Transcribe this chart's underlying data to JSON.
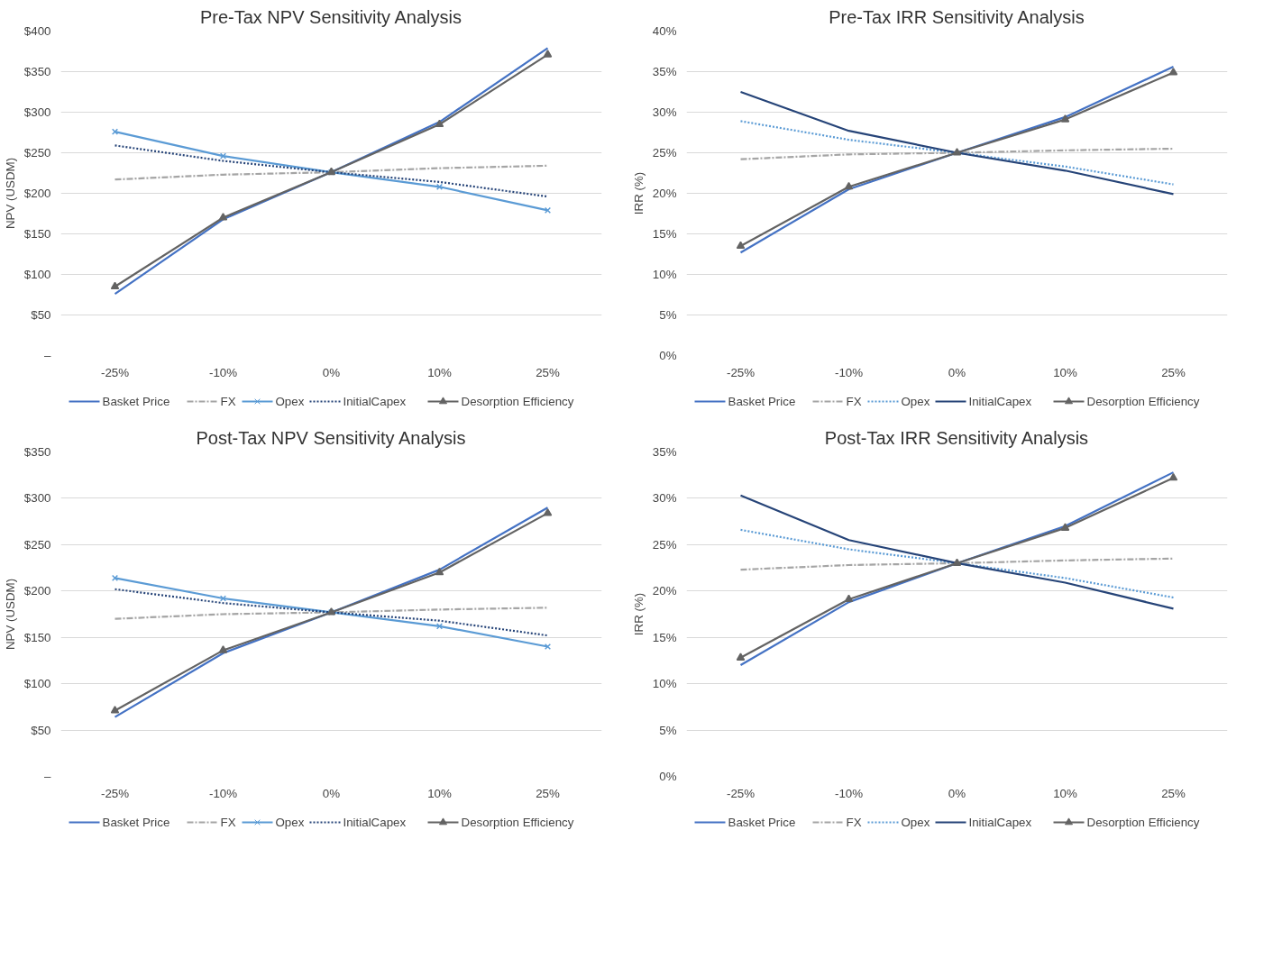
{
  "chart_data": [
    {
      "type": "line",
      "title": "Pre-Tax NPV Sensitivity Analysis",
      "ylabel": "NPV (USDM)",
      "categories": [
        "-25%",
        "-10%",
        "0%",
        "10%",
        "25%"
      ],
      "ylim": [
        0,
        400
      ],
      "yticks": [
        {
          "value": 0,
          "label": "–"
        },
        {
          "value": 50,
          "label": "$50"
        },
        {
          "value": 100,
          "label": "$100"
        },
        {
          "value": 150,
          "label": "$150"
        },
        {
          "value": 200,
          "label": "$200"
        },
        {
          "value": 250,
          "label": "$250"
        },
        {
          "value": 300,
          "label": "$300"
        },
        {
          "value": 350,
          "label": "$350"
        },
        {
          "value": 400,
          "label": "$400"
        }
      ],
      "grid": "y",
      "legend": "bottom",
      "series": [
        {
          "name": "Basket Price",
          "color": "#4472c4",
          "line_style": "solid",
          "marker": "none",
          "values": [
            76,
            168,
            226,
            288,
            379
          ]
        },
        {
          "name": "FX",
          "color": "#a5a5a5",
          "line_style": "dashdot",
          "marker": "none",
          "values": [
            217,
            223,
            226,
            231,
            234
          ]
        },
        {
          "name": "Opex",
          "color": "#5b9bd5",
          "line_style": "solid",
          "marker": "cross",
          "values": [
            276,
            246,
            226,
            208,
            179
          ]
        },
        {
          "name": "InitialCapex",
          "color": "#264478",
          "line_style": "dotted",
          "marker": "none",
          "values": [
            259,
            240,
            226,
            214,
            196
          ]
        },
        {
          "name": "Desorption Efficiency",
          "color": "#636363",
          "line_style": "solid",
          "marker": "triangle",
          "values": [
            85,
            170,
            226,
            285,
            371
          ]
        }
      ]
    },
    {
      "type": "line",
      "title": "Pre-Tax IRR Sensitivity Analysis",
      "ylabel": "IRR (%)",
      "categories": [
        "-25%",
        "-10%",
        "0%",
        "10%",
        "25%"
      ],
      "ylim": [
        0,
        40
      ],
      "yticks": [
        {
          "value": 0,
          "label": "0%"
        },
        {
          "value": 5,
          "label": "5%"
        },
        {
          "value": 10,
          "label": "10%"
        },
        {
          "value": 15,
          "label": "15%"
        },
        {
          "value": 20,
          "label": "20%"
        },
        {
          "value": 25,
          "label": "25%"
        },
        {
          "value": 30,
          "label": "30%"
        },
        {
          "value": 35,
          "label": "35%"
        },
        {
          "value": 40,
          "label": "40%"
        }
      ],
      "grid": "y",
      "legend": "bottom",
      "series": [
        {
          "name": "Basket Price",
          "color": "#4472c4",
          "line_style": "solid",
          "marker": "none",
          "values": [
            12.7,
            20.5,
            25.0,
            29.4,
            35.6
          ]
        },
        {
          "name": "FX",
          "color": "#a5a5a5",
          "line_style": "dashdot",
          "marker": "none",
          "values": [
            24.2,
            24.8,
            25.0,
            25.3,
            25.5
          ]
        },
        {
          "name": "Opex",
          "color": "#5b9bd5",
          "line_style": "dotted",
          "marker": "none",
          "values": [
            28.9,
            26.6,
            25.0,
            23.3,
            21.1
          ]
        },
        {
          "name": "InitialCapex",
          "color": "#264478",
          "line_style": "solid",
          "marker": "none",
          "values": [
            32.5,
            27.7,
            25.0,
            22.8,
            19.9
          ]
        },
        {
          "name": "Desorption Efficiency",
          "color": "#636363",
          "line_style": "solid",
          "marker": "triangle",
          "values": [
            13.5,
            20.8,
            25.0,
            29.1,
            34.9
          ]
        }
      ]
    },
    {
      "type": "line",
      "title": "Post-Tax NPV Sensitivity Analysis",
      "ylabel": "NPV (USDM)",
      "categories": [
        "-25%",
        "-10%",
        "0%",
        "10%",
        "25%"
      ],
      "ylim": [
        0,
        350
      ],
      "yticks": [
        {
          "value": 0,
          "label": "–"
        },
        {
          "value": 50,
          "label": "$50"
        },
        {
          "value": 100,
          "label": "$100"
        },
        {
          "value": 150,
          "label": "$150"
        },
        {
          "value": 200,
          "label": "$200"
        },
        {
          "value": 250,
          "label": "$250"
        },
        {
          "value": 300,
          "label": "$300"
        },
        {
          "value": 350,
          "label": "$350"
        }
      ],
      "grid": "y",
      "legend": "bottom",
      "series": [
        {
          "name": "Basket Price",
          "color": "#4472c4",
          "line_style": "solid",
          "marker": "none",
          "values": [
            64,
            133,
            177,
            223,
            290
          ]
        },
        {
          "name": "FX",
          "color": "#a5a5a5",
          "line_style": "dashdot",
          "marker": "none",
          "values": [
            170,
            175,
            177,
            180,
            182
          ]
        },
        {
          "name": "Opex",
          "color": "#5b9bd5",
          "line_style": "solid",
          "marker": "cross",
          "values": [
            214,
            192,
            177,
            162,
            140
          ]
        },
        {
          "name": "InitialCapex",
          "color": "#264478",
          "line_style": "dotted",
          "marker": "none",
          "values": [
            202,
            187,
            177,
            168,
            152
          ]
        },
        {
          "name": "Desorption Efficiency",
          "color": "#636363",
          "line_style": "solid",
          "marker": "triangle",
          "values": [
            71,
            136,
            177,
            220,
            284
          ]
        }
      ]
    },
    {
      "type": "line",
      "title": "Post-Tax IRR Sensitivity Analysis",
      "ylabel": "IRR (%)",
      "categories": [
        "-25%",
        "-10%",
        "0%",
        "10%",
        "25%"
      ],
      "ylim": [
        0,
        35
      ],
      "yticks": [
        {
          "value": 0,
          "label": "0%"
        },
        {
          "value": 5,
          "label": "5%"
        },
        {
          "value": 10,
          "label": "10%"
        },
        {
          "value": 15,
          "label": "15%"
        },
        {
          "value": 20,
          "label": "20%"
        },
        {
          "value": 25,
          "label": "25%"
        },
        {
          "value": 30,
          "label": "30%"
        },
        {
          "value": 35,
          "label": "35%"
        }
      ],
      "grid": "y",
      "legend": "bottom",
      "series": [
        {
          "name": "Basket Price",
          "color": "#4472c4",
          "line_style": "solid",
          "marker": "none",
          "values": [
            12.0,
            18.8,
            23.0,
            27.0,
            32.8
          ]
        },
        {
          "name": "FX",
          "color": "#a5a5a5",
          "line_style": "dashdot",
          "marker": "none",
          "values": [
            22.3,
            22.8,
            23.0,
            23.3,
            23.5
          ]
        },
        {
          "name": "Opex",
          "color": "#5b9bd5",
          "line_style": "dotted",
          "marker": "none",
          "values": [
            26.6,
            24.5,
            23.0,
            21.4,
            19.3
          ]
        },
        {
          "name": "InitialCapex",
          "color": "#264478",
          "line_style": "solid",
          "marker": "none",
          "values": [
            30.3,
            25.5,
            23.0,
            20.9,
            18.1
          ]
        },
        {
          "name": "Desorption Efficiency",
          "color": "#636363",
          "line_style": "solid",
          "marker": "triangle",
          "values": [
            12.8,
            19.1,
            23.0,
            26.8,
            32.2
          ]
        }
      ]
    }
  ]
}
